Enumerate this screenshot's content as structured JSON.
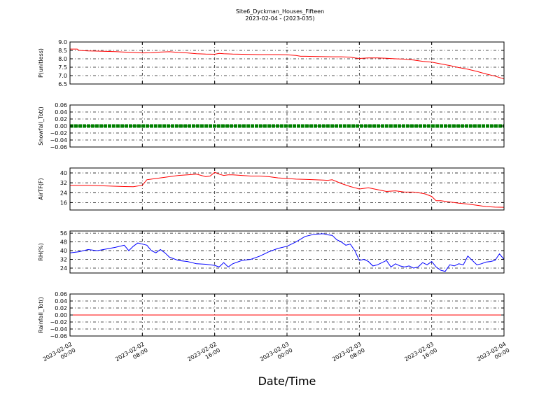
{
  "chart_data": {
    "type": "line",
    "title": "Site6_Dyckman_Houses_Fifteen",
    "subtitle": "2023-02-04 - (2023-035)",
    "xlabel": "Date/Time",
    "x_ticks": [
      {
        "value": 0,
        "line1": "2023-02-02",
        "line2": "00:00"
      },
      {
        "value": 8,
        "line1": "2023-02-02",
        "line2": "08:00"
      },
      {
        "value": 16,
        "line1": "2023-02-02",
        "line2": "16:00"
      },
      {
        "value": 24,
        "line1": "2023-02-03",
        "line2": "00:00"
      },
      {
        "value": 32,
        "line1": "2023-02-03",
        "line2": "08:00"
      },
      {
        "value": 40,
        "line1": "2023-02-03",
        "line2": "16:00"
      },
      {
        "value": 48,
        "line1": "2023-02-04",
        "line2": "00:00"
      }
    ],
    "xlim": [
      0,
      48
    ],
    "grid": true,
    "panels": [
      {
        "ylabel": "P(unitless)",
        "ylim": [
          6.5,
          9.0
        ],
        "yticks": [
          "9.0",
          "8.5",
          "8.0",
          "7.5",
          "7.0",
          "6.5"
        ],
        "ytick_values": [
          9.0,
          8.5,
          8.0,
          7.5,
          7.0,
          6.5
        ],
        "color": "#ff0000",
        "style": "line",
        "x": [
          0,
          0.8,
          1,
          2,
          3,
          4,
          5,
          6,
          7,
          8,
          9,
          10,
          11,
          12,
          13,
          14,
          15,
          16,
          16.5,
          17,
          18,
          19,
          20,
          21,
          22,
          23,
          24,
          25,
          25.5,
          26,
          27,
          28,
          29,
          30,
          31,
          31.5,
          32,
          33,
          34,
          35,
          36,
          37,
          38,
          39,
          40,
          41,
          42,
          43,
          44,
          45,
          46,
          47,
          48
        ],
        "y": [
          8.58,
          8.58,
          8.5,
          8.47,
          8.46,
          8.44,
          8.43,
          8.4,
          8.38,
          8.35,
          8.36,
          8.4,
          8.42,
          8.38,
          8.35,
          8.3,
          8.28,
          8.27,
          8.32,
          8.3,
          8.28,
          8.27,
          8.26,
          8.25,
          8.25,
          8.25,
          8.24,
          8.2,
          8.15,
          8.15,
          8.14,
          8.13,
          8.12,
          8.12,
          8.1,
          8.05,
          8.02,
          8.05,
          8.05,
          8.03,
          8.0,
          7.98,
          7.93,
          7.85,
          7.8,
          7.7,
          7.6,
          7.48,
          7.38,
          7.25,
          7.1,
          6.97,
          6.8
        ]
      },
      {
        "ylabel": "Snowfall_Tot()",
        "ylim": [
          -0.06,
          0.06
        ],
        "yticks": [
          "0.06",
          "0.04",
          "0.02",
          "0.00",
          "−0.02",
          "−0.04",
          "−0.06"
        ],
        "ytick_values": [
          0.06,
          0.04,
          0.02,
          0.0,
          -0.02,
          -0.04,
          -0.06
        ],
        "color": "#008000",
        "style": "markers",
        "x": [
          0,
          48
        ],
        "y": [
          0,
          0
        ]
      },
      {
        "ylabel": "AirTF(F)",
        "ylim": [
          10,
          44
        ],
        "yticks": [
          "40",
          "32",
          "24",
          "16"
        ],
        "ytick_values": [
          40,
          32,
          24,
          16
        ],
        "color": "#ff0000",
        "style": "line",
        "x": [
          0,
          2,
          4,
          6,
          7,
          8,
          8.5,
          9,
          10,
          11,
          12,
          13,
          14,
          15,
          15.5,
          16,
          16.5,
          17,
          17.5,
          18,
          19,
          20,
          21,
          22,
          23,
          24,
          25,
          26,
          27,
          28,
          28.5,
          29,
          30,
          31,
          31.5,
          32,
          33,
          34,
          35,
          36,
          37,
          38,
          39,
          39.3,
          40,
          40.5,
          41,
          42,
          43,
          44,
          45,
          46,
          47,
          48
        ],
        "y": [
          30,
          30,
          29.5,
          29,
          28.8,
          30,
          34.5,
          35,
          36,
          37,
          38,
          38.5,
          39,
          37,
          37.5,
          40.5,
          39,
          38,
          38.5,
          38.5,
          38,
          37.5,
          37.5,
          37,
          36,
          35.5,
          35,
          34.8,
          34.5,
          34.2,
          34,
          34.5,
          31.5,
          29,
          28,
          27,
          28,
          26.5,
          25,
          25.5,
          24.5,
          24.5,
          23.5,
          23,
          21,
          17.5,
          17.5,
          16.5,
          15.5,
          14.8,
          13.8,
          12.8,
          12.3,
          12.2
        ]
      },
      {
        "ylabel": "RH(%)",
        "ylim": [
          19.5,
          58
        ],
        "yticks": [
          "56",
          "48",
          "40",
          "32",
          "24"
        ],
        "ytick_values": [
          56,
          48,
          40,
          32,
          24
        ],
        "color": "#0000ff",
        "style": "line",
        "x": [
          0,
          1,
          2,
          3,
          4,
          5,
          6,
          6.5,
          7,
          7.5,
          8,
          8.5,
          9,
          9.5,
          10,
          10.5,
          11,
          12,
          13,
          14,
          15,
          16,
          16.5,
          17,
          17.5,
          18,
          19,
          20,
          21,
          22,
          23,
          24,
          25,
          26,
          27,
          28,
          28.5,
          29,
          29.5,
          30,
          30.5,
          31,
          31.5,
          32,
          32.5,
          33,
          33.5,
          34,
          35,
          35.5,
          36,
          36.5,
          37,
          37.5,
          38,
          38.5,
          39,
          39.5,
          40,
          40.5,
          41,
          41.5,
          42,
          42.5,
          43,
          43.5,
          44,
          45,
          45.5,
          46,
          46.5,
          47,
          47.5,
          48
        ],
        "y": [
          38,
          39,
          41,
          40,
          41.5,
          43,
          45,
          40,
          44,
          47,
          46,
          45,
          40,
          38,
          41,
          38,
          34,
          31,
          30,
          28,
          27.5,
          26.5,
          25,
          29,
          25,
          28,
          31,
          32,
          35,
          39,
          42,
          44,
          48,
          53,
          55,
          55.5,
          54.5,
          54,
          50,
          48,
          45,
          46,
          40,
          31,
          32,
          30,
          26,
          27,
          31,
          25,
          28,
          26,
          25,
          26,
          24,
          25,
          29,
          27,
          30,
          25,
          22,
          21,
          27,
          26,
          28,
          27,
          35,
          27,
          28,
          29.5,
          30,
          31,
          37,
          32
        ]
      },
      {
        "ylabel": "Rainfall_Tot()",
        "ylim": [
          -0.06,
          0.06
        ],
        "yticks": [
          "0.06",
          "0.04",
          "0.02",
          "0.00",
          "−0.02",
          "−0.04",
          "−0.06"
        ],
        "ytick_values": [
          0.06,
          0.04,
          0.02,
          0.0,
          -0.02,
          -0.04,
          -0.06
        ],
        "color": "#ff0000",
        "style": "line",
        "x": [
          0,
          48
        ],
        "y": [
          0,
          0
        ]
      }
    ]
  }
}
